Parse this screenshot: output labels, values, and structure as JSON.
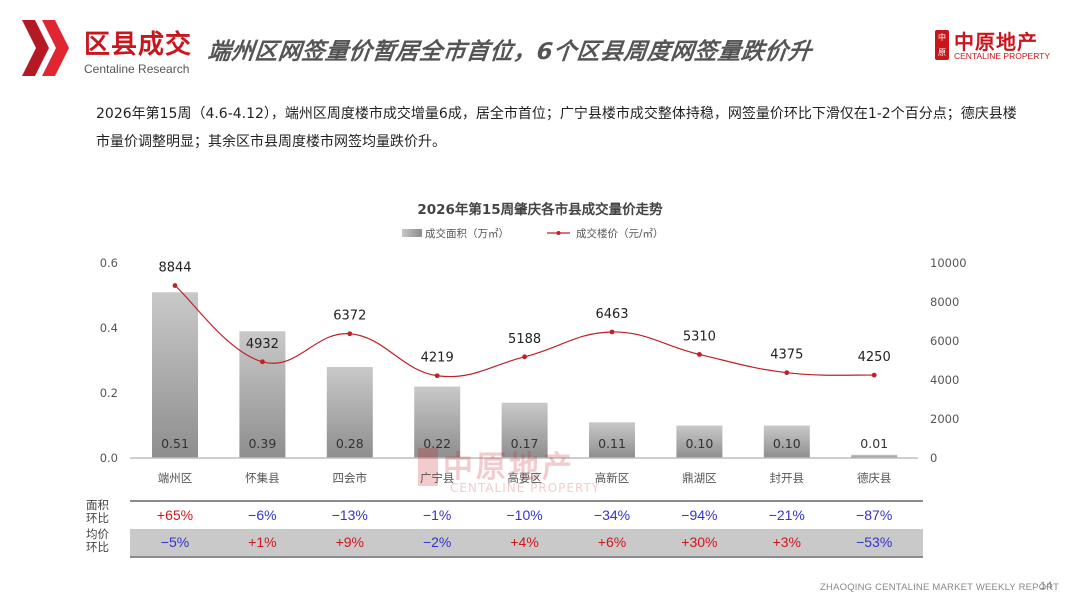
{
  "header": {
    "section_title": "区县成交",
    "section_subtitle": "Centaline Research",
    "headline": "端州区网签量价暂居全市首位，6个区县周度网签量跌价升",
    "brand": {
      "cn": "中原地产",
      "en": "CENTALINE PROPERTY",
      "seal": "中原"
    }
  },
  "summary": "2026年第15周（4.6-4.12），端州区周度楼市成交增量6成，居全市首位；广宁县楼市成交整体持稳，网签量价环比下滑仅在1-2个百分点；德庆县楼市量价调整明显；其余区市县周度楼市网签均量跌价升。",
  "colors": {
    "brand_red": "#c8161d",
    "line_red": "#c0202a",
    "bar_gray": "#a8a8a8",
    "positive": "#d0161d",
    "negative": "#3333cc"
  },
  "chart_data": {
    "type": "bar",
    "title": "2026年第15周肇庆各市县成交量价走势",
    "categories": [
      "端州区",
      "怀集县",
      "四会市",
      "广宁县",
      "高要区",
      "高新区",
      "鼎湖区",
      "封开县",
      "德庆县"
    ],
    "series": [
      {
        "name": "成交面积（万㎡）",
        "type": "bar",
        "axis": "left",
        "values": [
          0.51,
          0.39,
          0.28,
          0.22,
          0.17,
          0.11,
          0.1,
          0.1,
          0.01
        ],
        "labels": [
          "0.51",
          "0.39",
          "0.28",
          "0.22",
          "0.17",
          "0.11",
          "0.10",
          "0.10",
          "0.01"
        ]
      },
      {
        "name": "成交楼价（元/㎡）",
        "type": "line",
        "axis": "right",
        "values": [
          8844,
          4932,
          6372,
          4219,
          5188,
          6463,
          5310,
          4375,
          4250
        ]
      }
    ],
    "left_axis": {
      "ticks": [
        "0.0",
        "0.2",
        "0.4",
        "0.6"
      ],
      "ylim": [
        0,
        0.6
      ]
    },
    "right_axis": {
      "ticks": [
        "0",
        "2000",
        "4000",
        "6000",
        "8000",
        "10000"
      ],
      "ylim": [
        0,
        10000
      ]
    },
    "legend_position": "top",
    "grid": false,
    "xlabel": "",
    "ylabel": ""
  },
  "table": {
    "rows": [
      {
        "label_line1": "面积",
        "label_line2": "环比",
        "values": [
          "+65%",
          "−6%",
          "−13%",
          "−1%",
          "−10%",
          "−34%",
          "−94%",
          "−21%",
          "−87%"
        ]
      },
      {
        "label_line1": "均价",
        "label_line2": "环比",
        "values": [
          "−5%",
          "+1%",
          "+9%",
          "−2%",
          "+4%",
          "+6%",
          "+30%",
          "+3%",
          "−53%"
        ]
      }
    ]
  },
  "watermark": {
    "cn": "中原地产",
    "en": "CENTALINE PROPERTY"
  },
  "footer": {
    "text": "ZHAOQING  CENTALINE MARKET WEEKLY REPORT",
    "page": "14"
  }
}
